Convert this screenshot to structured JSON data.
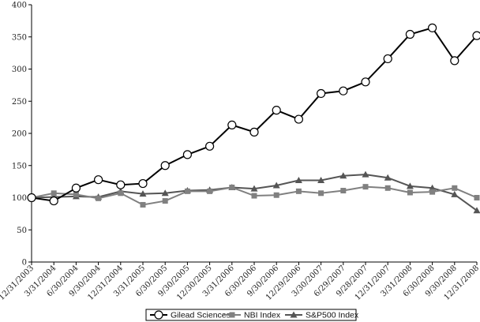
{
  "chart_data": {
    "type": "line",
    "title": "",
    "xlabel": "",
    "ylabel": "",
    "ylim": [
      0,
      400
    ],
    "yticks": [
      0,
      50,
      100,
      150,
      200,
      250,
      300,
      350,
      400
    ],
    "grid": false,
    "legend_placement": "bottom",
    "categories": [
      "12/31/2003",
      "3/31/2004",
      "6/30/2004",
      "9/30/2004",
      "12/31/2004",
      "3/31/2005",
      "6/30/2005",
      "9/30/2005",
      "12/30/2005",
      "3/31/2006",
      "6/30/2006",
      "9/30/2006",
      "12/29/2006",
      "3/30/2007",
      "6/29/2007",
      "9/28/2007",
      "12/31/2007",
      "3/31/2008",
      "6/30/2008",
      "9/30/2008",
      "12/31/2008"
    ],
    "series": [
      {
        "name": "Gilead Sciences",
        "marker": "circle-open",
        "color": "#000000",
        "values": [
          100,
          95,
          115,
          128,
          120,
          122,
          150,
          167,
          180,
          213,
          202,
          236,
          222,
          262,
          266,
          280,
          316,
          354,
          364,
          313,
          352
        ]
      },
      {
        "name": "NBI Index",
        "marker": "square",
        "color": "#808080",
        "values": [
          100,
          107,
          105,
          99,
          107,
          89,
          95,
          110,
          110,
          116,
          103,
          104,
          110,
          107,
          111,
          117,
          115,
          108,
          109,
          115,
          100
        ]
      },
      {
        "name": "S&P500 Index",
        "marker": "triangle",
        "color": "#555555",
        "values": [
          100,
          101,
          102,
          101,
          110,
          106,
          107,
          111,
          112,
          116,
          114,
          119,
          127,
          127,
          134,
          136,
          131,
          118,
          115,
          105,
          80
        ]
      }
    ]
  }
}
